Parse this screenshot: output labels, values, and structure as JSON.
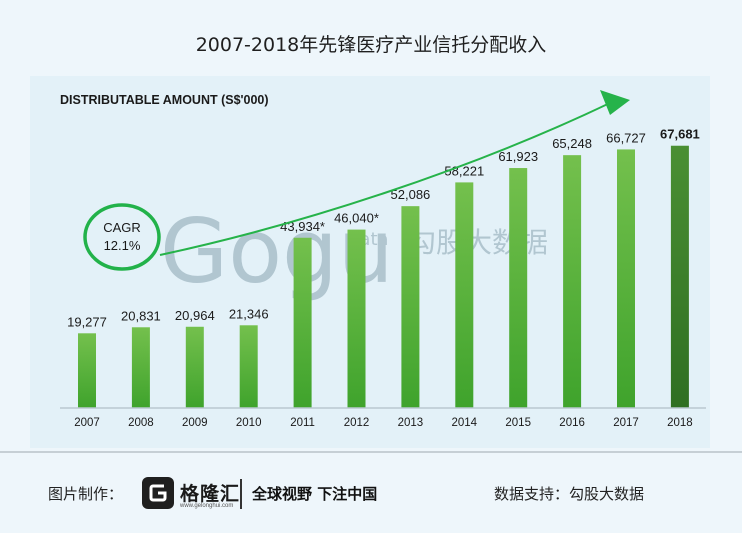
{
  "page_title": "2007-2018年先锋医疗产业信托分配收入",
  "chart_data": {
    "type": "bar",
    "title": "DISTRIBUTABLE AMOUNT (S$'000)",
    "categories": [
      "2007",
      "2008",
      "2009",
      "2010",
      "2011",
      "2012",
      "2013",
      "2014",
      "2015",
      "2016",
      "2017",
      "2018"
    ],
    "values": [
      19277,
      20831,
      20964,
      21346,
      43934,
      46040,
      52086,
      58221,
      61923,
      65248,
      66727,
      67681
    ],
    "value_labels": [
      "19,277",
      "20,831",
      "20,964",
      "21,346",
      "43,934*",
      "46,040*",
      "52,086",
      "58,221",
      "61,923",
      "65,248",
      "66,727",
      "67,681"
    ],
    "ylim": [
      0,
      80000
    ],
    "grid": false,
    "colors": {
      "bar_top": "#74c04d",
      "bar_bottom": "#3fa32c",
      "highlight": "#3d7f2c",
      "arrow": "#26b34a"
    },
    "annotation": {
      "line1": "CAGR",
      "line2": "12.1%"
    }
  },
  "watermark": {
    "text": "Gogu",
    "sub": "data",
    "cn": "勾股大数据"
  },
  "footer": {
    "left_label": "图片制作：",
    "logo_name": "格隆汇",
    "logo_url": "www.gelonghui.com",
    "slogan": "全球视野 下注中国",
    "right_label": "数据支持：勾股大数据"
  }
}
